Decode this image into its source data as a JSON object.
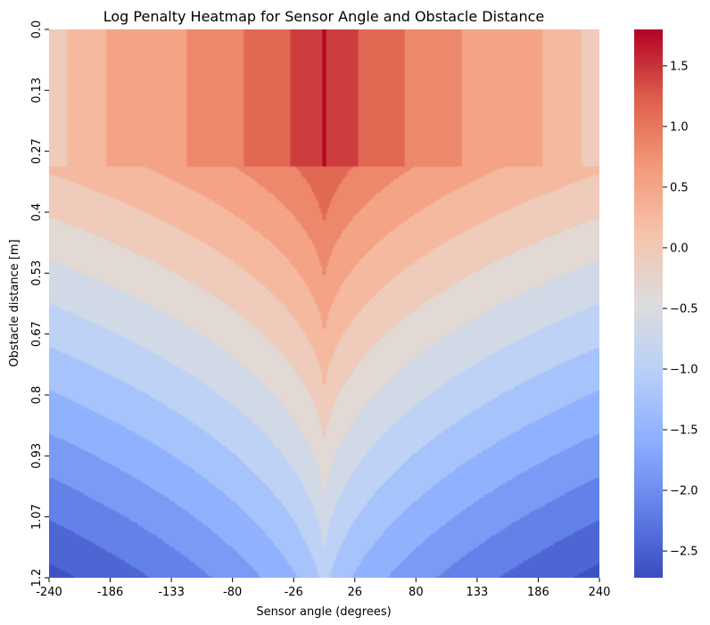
{
  "chart_data": {
    "type": "heatmap",
    "title": "Log Penalty Heatmap for Sensor Angle and Obstacle Distance",
    "xlabel": "Sensor angle (degrees)",
    "ylabel": "Obstacle distance [m]",
    "x_ticks": [
      "-240",
      "-186",
      "-133",
      "-80",
      "-26",
      "26",
      "80",
      "133",
      "186",
      "240"
    ],
    "y_ticks": [
      "0.0",
      "0.13",
      "0.27",
      "0.4",
      "0.53",
      "0.67",
      "0.8",
      "0.93",
      "1.07",
      "1.2"
    ],
    "xlim": [
      -240,
      240
    ],
    "ylim": [
      0,
      1.2
    ],
    "colormap": "coolwarm",
    "colorbar": {
      "min": -2.72,
      "max": 1.8,
      "ticks": [
        "1.5",
        "1.0",
        "0.5",
        "0.0",
        "−0.5",
        "−1.0",
        "−1.5",
        "−2.0",
        "−2.5"
      ],
      "tick_values": [
        1.5,
        1.0,
        0.5,
        0.0,
        -0.5,
        -1.0,
        -1.5,
        -2.0,
        -2.5
      ]
    },
    "value_model": {
      "near_field_distance_max": 0.3,
      "near_field_bands": [
        {
          "angle_abs_max": 2,
          "value": 1.8
        },
        {
          "angle_abs_max": 30,
          "value": 1.4
        },
        {
          "angle_abs_max": 70,
          "value": 1.15
        },
        {
          "angle_abs_max": 120,
          "value": 0.85
        },
        {
          "angle_abs_max": 190,
          "value": 0.5
        },
        {
          "angle_abs_max": 225,
          "value": 0.25
        },
        {
          "angle_abs_max": 240,
          "value": 0.05
        }
      ],
      "far_field_value_at_0deg_0.3m": 1.35,
      "far_field_value_at_0deg_1.2m": -0.9,
      "far_field_value_at_240deg_0.3m": 0.15,
      "far_field_value_at_240deg_1.2m": -2.7,
      "contour_levels": [
        -2.6,
        -2.3,
        -2.0,
        -1.7,
        -1.4,
        -1.1,
        -0.8,
        -0.5,
        -0.2,
        0.1,
        0.4,
        0.7,
        1.0,
        1.3,
        1.6
      ]
    }
  }
}
